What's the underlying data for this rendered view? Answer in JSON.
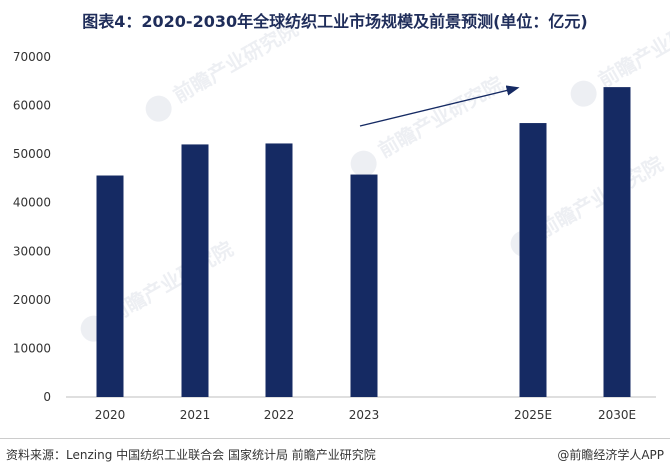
{
  "chart_data": {
    "type": "bar",
    "title": "图表4：2020-2030年全球纺织工业市场规模及前景预测(单位：亿元)",
    "categories": [
      "2020",
      "2021",
      "2022",
      "2023",
      "2025E",
      "2030E"
    ],
    "values": [
      45600,
      52000,
      52200,
      45800,
      56400,
      63800
    ],
    "yticks": [
      "0",
      "10000",
      "20000",
      "30000",
      "40000",
      "50000",
      "60000",
      "70000"
    ],
    "ylim": [
      0,
      70000
    ],
    "xlabel": "",
    "ylabel": "",
    "grid": false,
    "annotations": [
      "trend-arrow"
    ],
    "bar_color": "#152a63",
    "axis_color": "#bfbfbf",
    "watermark_text": "前瞻产业研究院"
  },
  "footer": {
    "source": "资料来源：Lenzing 中国纺织工业联合会 国家统计局 前瞻产业研究院",
    "brand": "@前瞻经济学人APP"
  }
}
